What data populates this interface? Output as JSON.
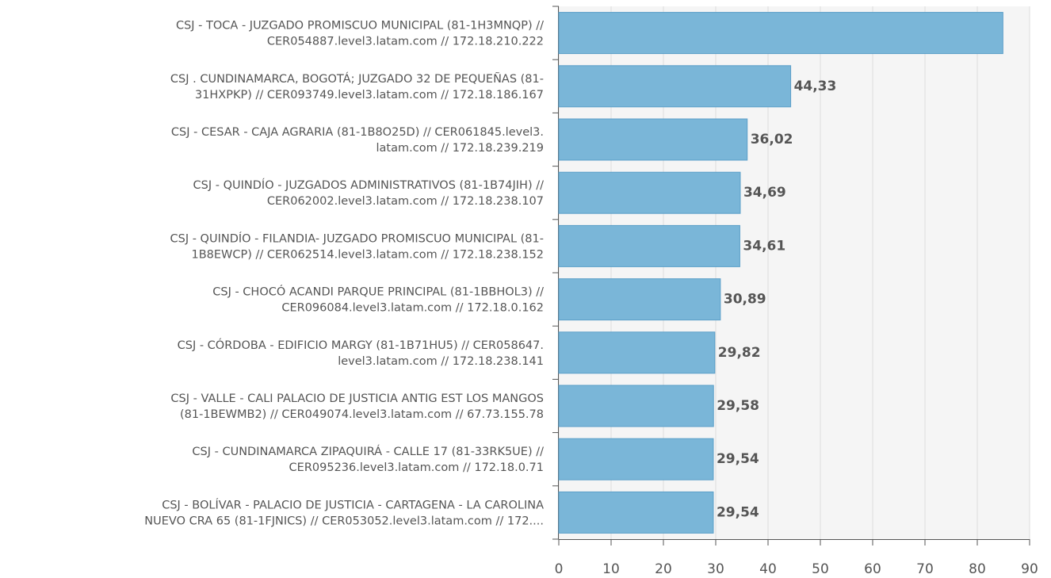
{
  "chart_data": {
    "type": "bar",
    "orientation": "horizontal",
    "categories": [
      [
        "CSJ - TOCA - JUZGADO PROMISCUO MUNICIPAL (81-1H3MNQP) //",
        "CER054887.level3.latam.com // 172.18.210.222"
      ],
      [
        "CSJ . CUNDINAMARCA, BOGOTÁ; JUZGADO 32 DE PEQUEÑAS (81-",
        "31HXPKP) // CER093749.level3.latam.com // 172.18.186.167"
      ],
      [
        "CSJ - CESAR -    CAJA AGRARIA (81-1B8O25D) // CER061845.level3.",
        "latam.com // 172.18.239.219"
      ],
      [
        "CSJ - QUINDÍO -  JUZGADOS ADMINISTRATIVOS (81-1B74JIH) //",
        "CER062002.level3.latam.com // 172.18.238.107"
      ],
      [
        "CSJ - QUINDÍO - FILANDIA- JUZGADO PROMISCUO MUNICIPAL (81-",
        "1B8EWCP) // CER062514.level3.latam.com // 172.18.238.152"
      ],
      [
        "CSJ - CHOCÓ ACANDI PARQUE PRINCIPAL (81-1BBHOL3) //",
        "CER096084.level3.latam.com // 172.18.0.162"
      ],
      [
        "CSJ - CÓRDOBA -  EDIFICIO MARGY (81-1B71HU5) // CER058647.",
        "level3.latam.com // 172.18.238.141"
      ],
      [
        "CSJ - VALLE -  CALI PALACIO DE JUSTICIA ANTIG EST  LOS MANGOS",
        "(81-1BEWMB2) // CER049074.level3.latam.com // 67.73.155.78"
      ],
      [
        "CSJ - CUNDINAMARCA ZIPAQUIRÁ - CALLE 17 (81-33RK5UE) //",
        "CER095236.level3.latam.com // 172.18.0.71"
      ],
      [
        "CSJ - BOLÍVAR -  PALACIO DE JUSTICIA - CARTAGENA - LA CAROLINA",
        "NUEVO CRA 65 (81-1FJNICS) // CER053052.level3.latam.com // 172...."
      ]
    ],
    "values": [
      84.9,
      44.33,
      36.02,
      34.69,
      34.61,
      30.89,
      29.82,
      29.58,
      29.54,
      29.54
    ],
    "value_labels": [
      null,
      "44,33",
      "36,02",
      "34,69",
      "34,61",
      "30,89",
      "29,82",
      "29,58",
      "29,54",
      "29,54"
    ],
    "color": "#7ab6d8",
    "xlim": [
      0,
      90
    ],
    "xticks": [
      0,
      10,
      20,
      30,
      40,
      50,
      60,
      70,
      80,
      90
    ],
    "grid": true
  }
}
